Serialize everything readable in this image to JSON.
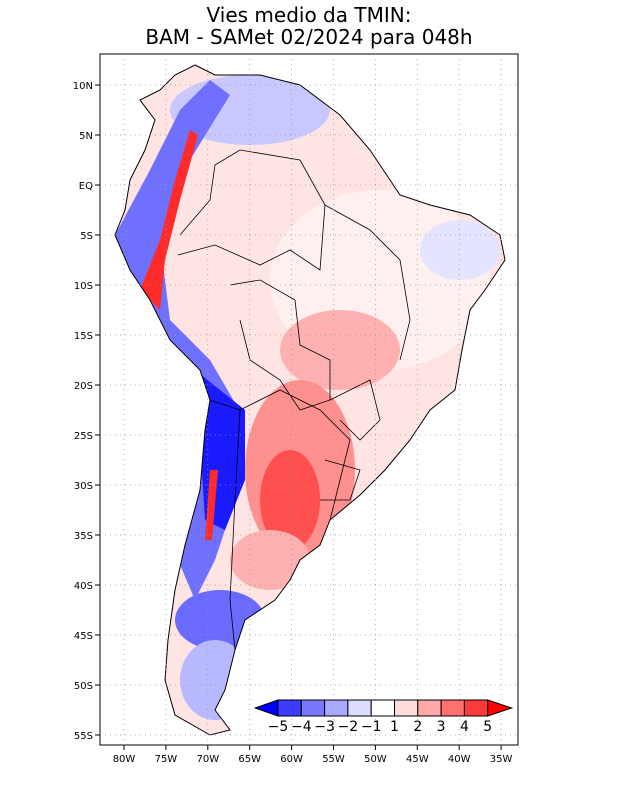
{
  "title": {
    "line1": "Vies medio da TMIN:",
    "line2": "BAM - SAMet 02/2024  para 048h"
  },
  "axes": {
    "lon_labels": [
      "80W",
      "75W",
      "70W",
      "65W",
      "60W",
      "55W",
      "50W",
      "45W",
      "40W",
      "35W"
    ],
    "lat_labels": [
      "10N",
      "5N",
      "EQ",
      "5S",
      "10S",
      "15S",
      "20S",
      "25S",
      "30S",
      "35S",
      "40S",
      "45S",
      "50S",
      "55S"
    ]
  },
  "colorbar": {
    "labels": [
      "-5",
      "-4",
      "-3",
      "-2",
      "-1",
      "1",
      "2",
      "3",
      "4",
      "5"
    ],
    "colors": [
      "#0000ff",
      "#3c3cff",
      "#7878ff",
      "#a8a8ff",
      "#dcdcff",
      "#ffffff",
      "#ffdcdc",
      "#ffa8a8",
      "#ff7070",
      "#ff3a3a",
      "#ff0000"
    ]
  }
}
